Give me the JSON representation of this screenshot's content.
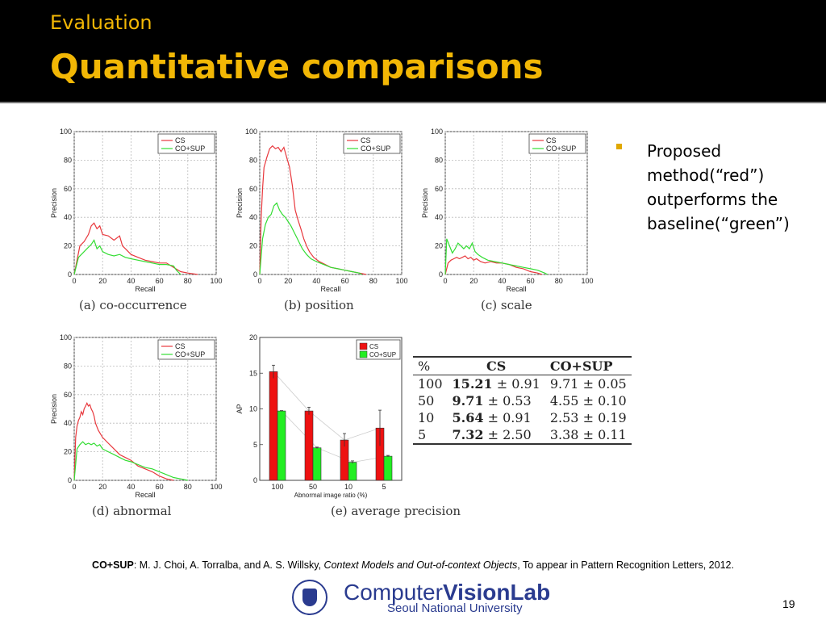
{
  "header": {
    "subtitle": "Evaluation",
    "title": "Quantitative comparisons"
  },
  "bullet": {
    "text": "Proposed method(“red”) outperforms the baseline(“green”)"
  },
  "chart_data": [
    {
      "type": "line",
      "id": "a",
      "caption": "(a) co-occurrence",
      "xlabel": "Recall",
      "ylabel": "Precision",
      "xlim": [
        0,
        100
      ],
      "ylim": [
        0,
        100
      ],
      "xticks": [
        0,
        20,
        40,
        60,
        80,
        100
      ],
      "yticks": [
        0,
        20,
        40,
        60,
        80,
        100
      ],
      "grid": true,
      "legend": "top-right",
      "series": [
        {
          "name": "CS",
          "color": "#e8383d",
          "points": [
            [
              0,
              0
            ],
            [
              2,
              10
            ],
            [
              4,
              20
            ],
            [
              7,
              23
            ],
            [
              10,
              28
            ],
            [
              12,
              34
            ],
            [
              14,
              36
            ],
            [
              16,
              32
            ],
            [
              18,
              34
            ],
            [
              20,
              28
            ],
            [
              24,
              27
            ],
            [
              28,
              24
            ],
            [
              32,
              27
            ],
            [
              34,
              20
            ],
            [
              36,
              18
            ],
            [
              40,
              14
            ],
            [
              45,
              12
            ],
            [
              50,
              10
            ],
            [
              55,
              9
            ],
            [
              60,
              8
            ],
            [
              65,
              8
            ],
            [
              70,
              5
            ],
            [
              75,
              2
            ],
            [
              80,
              1
            ],
            [
              87,
              0
            ]
          ]
        },
        {
          "name": "CO+SUP",
          "color": "#33dd33",
          "points": [
            [
              0,
              0
            ],
            [
              3,
              12
            ],
            [
              6,
              15
            ],
            [
              9,
              18
            ],
            [
              12,
              21
            ],
            [
              14,
              24
            ],
            [
              16,
              18
            ],
            [
              18,
              20
            ],
            [
              20,
              16
            ],
            [
              24,
              14
            ],
            [
              28,
              13
            ],
            [
              32,
              14
            ],
            [
              36,
              12
            ],
            [
              40,
              11
            ],
            [
              45,
              10
            ],
            [
              50,
              9
            ],
            [
              55,
              8
            ],
            [
              60,
              7
            ],
            [
              65,
              7
            ],
            [
              70,
              6
            ],
            [
              72,
              3
            ],
            [
              75,
              0
            ]
          ]
        }
      ]
    },
    {
      "type": "line",
      "id": "b",
      "caption": "(b) position",
      "xlabel": "Recall",
      "ylabel": "Precision",
      "xlim": [
        0,
        100
      ],
      "ylim": [
        0,
        100
      ],
      "xticks": [
        0,
        20,
        40,
        60,
        80,
        100
      ],
      "yticks": [
        0,
        20,
        40,
        60,
        80,
        100
      ],
      "grid": true,
      "legend": "top-right",
      "series": [
        {
          "name": "CS",
          "color": "#e8383d",
          "points": [
            [
              0,
              0
            ],
            [
              1,
              40
            ],
            [
              2,
              60
            ],
            [
              3,
              75
            ],
            [
              5,
              82
            ],
            [
              7,
              88
            ],
            [
              9,
              90
            ],
            [
              11,
              88
            ],
            [
              13,
              89
            ],
            [
              15,
              86
            ],
            [
              17,
              89
            ],
            [
              19,
              82
            ],
            [
              21,
              75
            ],
            [
              23,
              62
            ],
            [
              25,
              45
            ],
            [
              27,
              38
            ],
            [
              29,
              32
            ],
            [
              31,
              25
            ],
            [
              33,
              20
            ],
            [
              35,
              16
            ],
            [
              38,
              12
            ],
            [
              42,
              9
            ],
            [
              46,
              7
            ],
            [
              50,
              5
            ],
            [
              55,
              4
            ],
            [
              60,
              3
            ],
            [
              65,
              2
            ],
            [
              70,
              1
            ],
            [
              75,
              0
            ]
          ]
        },
        {
          "name": "CO+SUP",
          "color": "#33dd33",
          "points": [
            [
              0,
              0
            ],
            [
              2,
              25
            ],
            [
              4,
              35
            ],
            [
              6,
              40
            ],
            [
              8,
              42
            ],
            [
              10,
              48
            ],
            [
              12,
              50
            ],
            [
              14,
              45
            ],
            [
              16,
              42
            ],
            [
              18,
              40
            ],
            [
              20,
              37
            ],
            [
              22,
              34
            ],
            [
              24,
              30
            ],
            [
              26,
              26
            ],
            [
              28,
              22
            ],
            [
              30,
              18
            ],
            [
              33,
              14
            ],
            [
              36,
              11
            ],
            [
              40,
              9
            ],
            [
              45,
              7
            ],
            [
              50,
              5
            ],
            [
              55,
              4
            ],
            [
              60,
              3
            ],
            [
              65,
              2
            ],
            [
              70,
              1
            ],
            [
              72,
              0
            ]
          ]
        }
      ]
    },
    {
      "type": "line",
      "id": "c",
      "caption": "(c) scale",
      "xlabel": "Recall",
      "ylabel": "Precision",
      "xlim": [
        0,
        100
      ],
      "ylim": [
        0,
        100
      ],
      "xticks": [
        0,
        20,
        40,
        60,
        80,
        100
      ],
      "yticks": [
        0,
        20,
        40,
        60,
        80,
        100
      ],
      "grid": true,
      "legend": "top-right",
      "series": [
        {
          "name": "CS",
          "color": "#e8383d",
          "points": [
            [
              0,
              0
            ],
            [
              2,
              8
            ],
            [
              4,
              10
            ],
            [
              6,
              11
            ],
            [
              8,
              12
            ],
            [
              10,
              11
            ],
            [
              12,
              12
            ],
            [
              14,
              13
            ],
            [
              16,
              11
            ],
            [
              18,
              12
            ],
            [
              20,
              10
            ],
            [
              22,
              11
            ],
            [
              25,
              9
            ],
            [
              28,
              8
            ],
            [
              32,
              9
            ],
            [
              36,
              8
            ],
            [
              40,
              8
            ],
            [
              45,
              7
            ],
            [
              50,
              5
            ],
            [
              55,
              4
            ],
            [
              60,
              2
            ],
            [
              65,
              1
            ],
            [
              68,
              0
            ]
          ]
        },
        {
          "name": "CO+SUP",
          "color": "#33dd33",
          "points": [
            [
              0,
              0
            ],
            [
              1,
              25
            ],
            [
              3,
              20
            ],
            [
              5,
              15
            ],
            [
              7,
              18
            ],
            [
              9,
              22
            ],
            [
              11,
              20
            ],
            [
              13,
              18
            ],
            [
              15,
              20
            ],
            [
              17,
              18
            ],
            [
              19,
              22
            ],
            [
              21,
              16
            ],
            [
              23,
              14
            ],
            [
              26,
              12
            ],
            [
              30,
              10
            ],
            [
              35,
              9
            ],
            [
              40,
              8
            ],
            [
              45,
              7
            ],
            [
              50,
              6
            ],
            [
              55,
              5
            ],
            [
              60,
              4
            ],
            [
              65,
              3
            ],
            [
              70,
              1
            ],
            [
              72,
              0
            ]
          ]
        }
      ]
    },
    {
      "type": "line",
      "id": "d",
      "caption": "(d) abnormal",
      "xlabel": "Recall",
      "ylabel": "Precision",
      "xlim": [
        0,
        100
      ],
      "ylim": [
        0,
        100
      ],
      "xticks": [
        0,
        20,
        40,
        60,
        80,
        100
      ],
      "yticks": [
        0,
        20,
        40,
        60,
        80,
        100
      ],
      "grid": true,
      "legend": "top-right",
      "series": [
        {
          "name": "CS",
          "color": "#e8383d",
          "points": [
            [
              0,
              0
            ],
            [
              1,
              30
            ],
            [
              2,
              38
            ],
            [
              3,
              42
            ],
            [
              4,
              44
            ],
            [
              5,
              48
            ],
            [
              6,
              46
            ],
            [
              7,
              50
            ],
            [
              8,
              52
            ],
            [
              9,
              54
            ],
            [
              10,
              52
            ],
            [
              11,
              53
            ],
            [
              12,
              50
            ],
            [
              13,
              48
            ],
            [
              14,
              45
            ],
            [
              15,
              40
            ],
            [
              17,
              35
            ],
            [
              20,
              30
            ],
            [
              24,
              26
            ],
            [
              28,
              22
            ],
            [
              32,
              18
            ],
            [
              36,
              16
            ],
            [
              40,
              14
            ],
            [
              45,
              10
            ],
            [
              50,
              8
            ],
            [
              55,
              6
            ],
            [
              60,
              3
            ],
            [
              65,
              1
            ],
            [
              70,
              0
            ]
          ]
        },
        {
          "name": "CO+SUP",
          "color": "#33dd33",
          "points": [
            [
              0,
              0
            ],
            [
              2,
              22
            ],
            [
              4,
              25
            ],
            [
              6,
              27
            ],
            [
              8,
              25
            ],
            [
              10,
              26
            ],
            [
              12,
              25
            ],
            [
              14,
              26
            ],
            [
              16,
              24
            ],
            [
              18,
              25
            ],
            [
              20,
              22
            ],
            [
              24,
              20
            ],
            [
              28,
              18
            ],
            [
              32,
              16
            ],
            [
              36,
              14
            ],
            [
              40,
              13
            ],
            [
              45,
              11
            ],
            [
              50,
              9
            ],
            [
              55,
              8
            ],
            [
              60,
              6
            ],
            [
              65,
              4
            ],
            [
              70,
              2
            ],
            [
              75,
              1
            ],
            [
              80,
              0
            ]
          ]
        }
      ]
    },
    {
      "type": "bar",
      "id": "e",
      "caption": "(e) average precision",
      "xlabel": "Abnormal image ratio (%)",
      "ylabel": "AP",
      "ylim": [
        0,
        20
      ],
      "yticks": [
        0,
        5,
        10,
        15,
        20
      ],
      "categories": [
        "100",
        "50",
        "10",
        "5"
      ],
      "legend": "top-right",
      "series": [
        {
          "name": "CS",
          "color": "#ee1111",
          "values": [
            15.21,
            9.71,
            5.64,
            7.32
          ],
          "errors": [
            0.91,
            0.53,
            0.91,
            2.5
          ]
        },
        {
          "name": "CO+SUP",
          "color": "#22ee22",
          "values": [
            9.71,
            4.55,
            2.53,
            3.38
          ],
          "errors": [
            0.05,
            0.1,
            0.19,
            0.11
          ]
        }
      ]
    }
  ],
  "table": {
    "headers": [
      "%",
      "CS",
      "CO+SUP"
    ],
    "rows": [
      {
        "pct": "100",
        "cs_bold": "15.21",
        "cs_err": " ± 0.91",
        "co": "9.71 ± 0.05"
      },
      {
        "pct": "50",
        "cs_bold": "9.71",
        "cs_err": " ± 0.53",
        "co": "4.55 ± 0.10"
      },
      {
        "pct": "10",
        "cs_bold": "5.64",
        "cs_err": " ± 0.91",
        "co": "2.53 ± 0.19"
      },
      {
        "pct": "5",
        "cs_bold": "7.32",
        "cs_err": " ± 2.50",
        "co": "3.38 ± 0.11"
      }
    ]
  },
  "reference": {
    "bold": "CO+SUP",
    "plain1": ": M. J. Choi, A. Torralba, and A. S. Willsky, ",
    "italic": "Context Models and Out-of-context Objects",
    "plain2": ", To appear in Pattern Recognition Letters, 2012."
  },
  "logo": {
    "name_light": "Computer",
    "name_bold": "VisionLab",
    "sub": "Seoul National University"
  },
  "page_number": "19"
}
